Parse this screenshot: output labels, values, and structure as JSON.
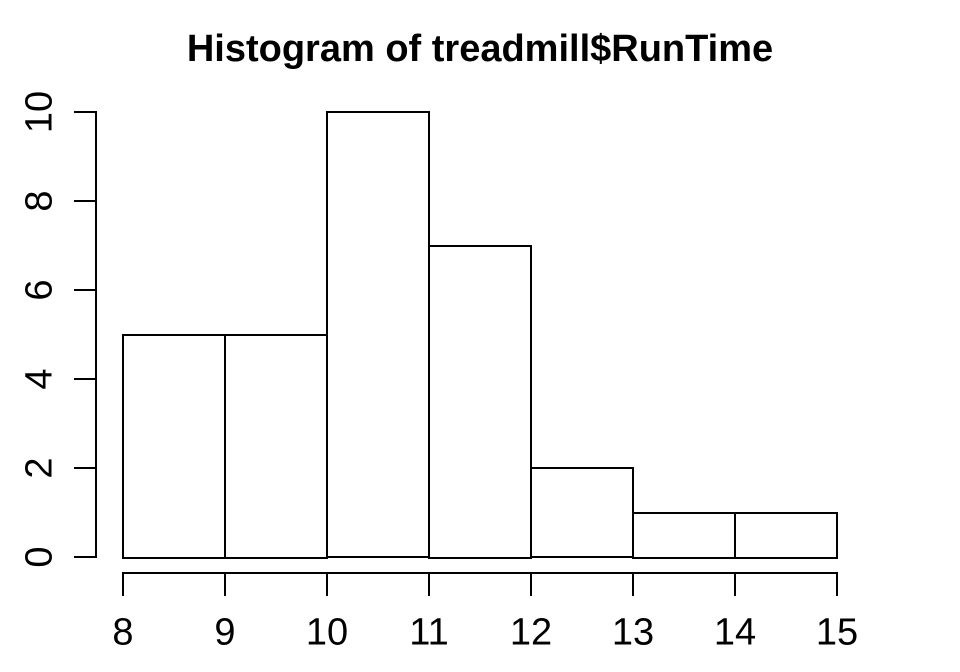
{
  "figure": {
    "background": "#ffffff",
    "foreground": "#000000"
  },
  "chart_data": {
    "type": "bar",
    "subtype": "histogram",
    "title": "Histogram of treadmill$RunTime",
    "bin_edges": [
      8,
      9,
      10,
      11,
      12,
      13,
      14,
      15
    ],
    "counts": [
      5,
      5,
      10,
      7,
      2,
      1,
      1
    ],
    "x_ticks": [
      "8",
      "9",
      "10",
      "11",
      "12",
      "13",
      "14",
      "15"
    ],
    "x_tick_values": [
      8,
      9,
      10,
      11,
      12,
      13,
      14,
      15
    ],
    "y_ticks": [
      "0",
      "2",
      "4",
      "6",
      "8",
      "10"
    ],
    "y_tick_values": [
      0,
      2,
      4,
      6,
      8,
      10
    ],
    "xlim": [
      8,
      15
    ],
    "ylim": [
      0,
      10
    ],
    "xlabel": "",
    "ylabel": "",
    "bar_fill": "#ffffff",
    "bar_border": "#000000",
    "grid": false,
    "legend": false
  }
}
